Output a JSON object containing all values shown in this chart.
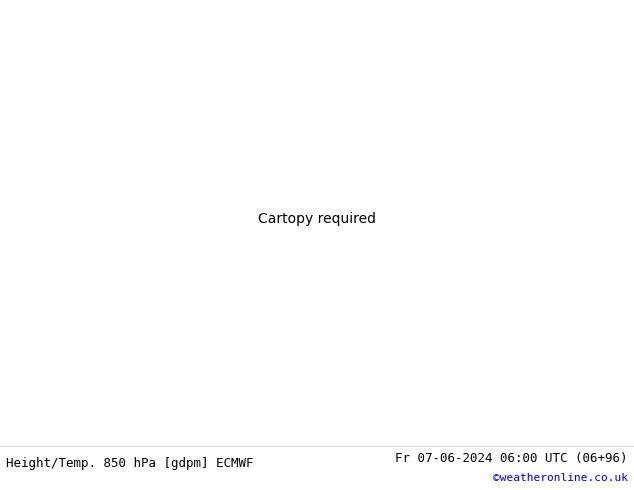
{
  "title_left": "Height/Temp. 850 hPa [gdpm] ECMWF",
  "title_right": "Fr 07-06-2024 06:00 UTC (06+96)",
  "credit": "©weatheronline.co.uk",
  "bg_color": "#d8d8d8",
  "land_color": "#c8edb0",
  "ocean_color": "#d8d8d8",
  "border_color": "#888888",
  "credit_color": "#0000cc",
  "temp_20_color": "#ff0000",
  "temp_15_color": "#ff8800",
  "temp_10_color": "#88bb00",
  "temp_5_color": "#88cc00",
  "temp_0_color": "#00cccc",
  "temp_m5_color": "#4488ff",
  "figsize": [
    6.34,
    4.9
  ],
  "dpi": 100
}
